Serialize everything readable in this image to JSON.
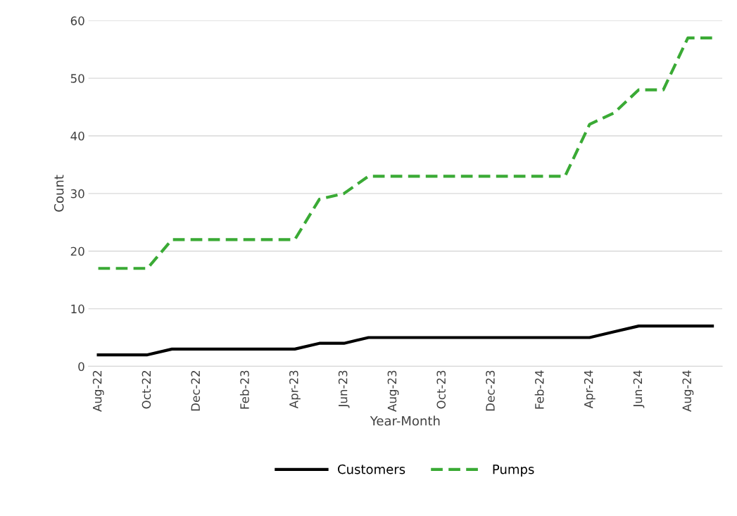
{
  "chart_data": {
    "type": "line",
    "xlabel": "Year-Month",
    "ylabel": "Count",
    "categories": [
      "Aug-22",
      null,
      "Oct-22",
      null,
      "Dec-22",
      null,
      "Feb-23",
      null,
      "Apr-23",
      null,
      "Jun-23",
      null,
      "Aug-23",
      null,
      "Oct-23",
      null,
      "Dec-23",
      null,
      "Feb-24",
      null,
      "Apr-24",
      null,
      "Jun-24",
      null,
      "Aug-24",
      null
    ],
    "series": [
      {
        "name": "Customers",
        "color": "#000000",
        "line_style": "solid",
        "values": [
          2,
          2,
          2,
          3,
          3,
          3,
          3,
          3,
          3,
          4,
          4,
          5,
          5,
          5,
          5,
          5,
          5,
          5,
          5,
          5,
          5,
          6,
          7,
          7,
          7,
          7
        ]
      },
      {
        "name": "Pumps",
        "color": "#3aaa35",
        "line_style": "dashed",
        "values": [
          17,
          17,
          17,
          22,
          22,
          22,
          22,
          22,
          22,
          29,
          30,
          33,
          33,
          33,
          33,
          33,
          33,
          33,
          33,
          33,
          42,
          44,
          48,
          48,
          57,
          57
        ]
      }
    ],
    "ylim": [
      0,
      60
    ],
    "yticks": [
      0,
      10,
      20,
      30,
      40,
      50,
      60
    ],
    "grid": "y",
    "legend": "bottom",
    "marker": "none"
  }
}
